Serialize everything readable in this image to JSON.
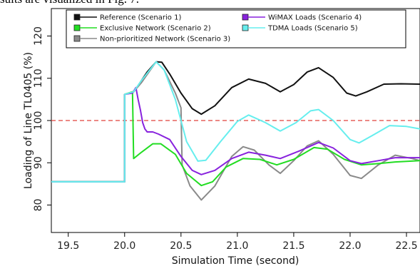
{
  "caption": "sults are visualized in Fig. 7.",
  "chart_data": {
    "type": "line",
    "title": "",
    "xlabel": "Simulation Time (second)",
    "ylabel": "Loading of Line TL0405 (%)",
    "xlim": [
      19.35,
      22.62
    ],
    "ylim": [
      73.5,
      126.5
    ],
    "xticks": [
      19.5,
      20.0,
      20.5,
      21.0,
      21.5,
      22.0,
      22.5
    ],
    "xtick_labels": [
      "19.5",
      "20.0",
      "20.5",
      "21.0",
      "21.5",
      "22.0",
      "22.5"
    ],
    "yticks": [
      80,
      90,
      100,
      110,
      120
    ],
    "ytick_labels": [
      "80",
      "90",
      "100",
      "110",
      "120"
    ],
    "grid": false,
    "legend_position": "top",
    "reference_line": {
      "y": 100,
      "style": "dashed",
      "color": "#e0403a"
    },
    "series": [
      {
        "name": "Reference (Scenario 1)",
        "color": "#111111",
        "points": [
          [
            19.35,
            85.5
          ],
          [
            20.0,
            85.5
          ],
          [
            20.0,
            106.2
          ],
          [
            20.08,
            106.8
          ],
          [
            20.1,
            107.5
          ],
          [
            20.2,
            111.5
          ],
          [
            20.28,
            113.9
          ],
          [
            20.33,
            113.8
          ],
          [
            20.4,
            111.0
          ],
          [
            20.5,
            106.5
          ],
          [
            20.6,
            102.8
          ],
          [
            20.68,
            101.5
          ],
          [
            20.8,
            103.5
          ],
          [
            20.95,
            107.8
          ],
          [
            21.1,
            109.8
          ],
          [
            21.25,
            108.8
          ],
          [
            21.38,
            106.8
          ],
          [
            21.5,
            108.5
          ],
          [
            21.62,
            111.5
          ],
          [
            21.72,
            112.5
          ],
          [
            21.85,
            110.2
          ],
          [
            21.97,
            106.5
          ],
          [
            22.05,
            105.8
          ],
          [
            22.15,
            106.8
          ],
          [
            22.3,
            108.6
          ],
          [
            22.45,
            108.7
          ],
          [
            22.62,
            108.6
          ]
        ]
      },
      {
        "name": "Exclusive Network (Scenario 2)",
        "color": "#22dd22",
        "points": [
          [
            19.35,
            85.5
          ],
          [
            20.0,
            85.5
          ],
          [
            20.0,
            106.2
          ],
          [
            20.07,
            106.8
          ],
          [
            20.08,
            91.0
          ],
          [
            20.15,
            92.5
          ],
          [
            20.25,
            94.5
          ],
          [
            20.32,
            94.5
          ],
          [
            20.45,
            92.0
          ],
          [
            20.55,
            87.5
          ],
          [
            20.68,
            84.6
          ],
          [
            20.78,
            85.5
          ],
          [
            20.9,
            89.0
          ],
          [
            21.05,
            91.0
          ],
          [
            21.2,
            90.8
          ],
          [
            21.35,
            89.5
          ],
          [
            21.5,
            90.8
          ],
          [
            21.68,
            93.6
          ],
          [
            21.8,
            93.2
          ],
          [
            21.95,
            90.8
          ],
          [
            22.1,
            89.5
          ],
          [
            22.25,
            89.8
          ],
          [
            22.4,
            90.2
          ],
          [
            22.62,
            90.5
          ]
        ]
      },
      {
        "name": "Non-prioritized Network (Scenario 3)",
        "color": "#8a8a8a",
        "points": [
          [
            19.35,
            85.5
          ],
          [
            20.0,
            85.5
          ],
          [
            20.0,
            106.2
          ],
          [
            20.08,
            106.8
          ],
          [
            20.15,
            109.0
          ],
          [
            20.28,
            113.9
          ],
          [
            20.35,
            112.0
          ],
          [
            20.45,
            106.5
          ],
          [
            20.5,
            103.0
          ],
          [
            20.51,
            89.5
          ],
          [
            20.58,
            84.5
          ],
          [
            20.68,
            81.2
          ],
          [
            20.8,
            84.5
          ],
          [
            20.95,
            91.5
          ],
          [
            21.05,
            93.8
          ],
          [
            21.15,
            93.0
          ],
          [
            21.28,
            89.5
          ],
          [
            21.38,
            87.5
          ],
          [
            21.5,
            90.5
          ],
          [
            21.62,
            94.0
          ],
          [
            21.72,
            95.2
          ],
          [
            21.85,
            92.0
          ],
          [
            22.0,
            87.0
          ],
          [
            22.1,
            86.3
          ],
          [
            22.25,
            89.5
          ],
          [
            22.4,
            91.8
          ],
          [
            22.55,
            91.0
          ],
          [
            22.62,
            90.5
          ]
        ]
      },
      {
        "name": "WiMAX Loads (Scenario 4)",
        "color": "#8822dd",
        "points": [
          [
            19.35,
            85.5
          ],
          [
            20.0,
            85.5
          ],
          [
            20.0,
            106.2
          ],
          [
            20.07,
            106.5
          ],
          [
            20.1,
            107.8
          ],
          [
            20.12,
            105.0
          ],
          [
            20.14,
            102.5
          ],
          [
            20.16,
            99.5
          ],
          [
            20.18,
            98.0
          ],
          [
            20.2,
            97.3
          ],
          [
            20.25,
            97.3
          ],
          [
            20.3,
            96.8
          ],
          [
            20.4,
            95.5
          ],
          [
            20.5,
            91.5
          ],
          [
            20.6,
            88.2
          ],
          [
            20.68,
            87.2
          ],
          [
            20.8,
            88.2
          ],
          [
            20.95,
            91.0
          ],
          [
            21.1,
            92.5
          ],
          [
            21.25,
            91.8
          ],
          [
            21.38,
            91.0
          ],
          [
            21.55,
            92.8
          ],
          [
            21.72,
            94.8
          ],
          [
            21.85,
            93.5
          ],
          [
            22.0,
            90.5
          ],
          [
            22.1,
            89.8
          ],
          [
            22.25,
            90.5
          ],
          [
            22.4,
            91.2
          ],
          [
            22.62,
            91.2
          ]
        ]
      },
      {
        "name": "TDMA Loads (Scenario 5)",
        "color": "#66eeee",
        "points": [
          [
            19.35,
            85.5
          ],
          [
            20.0,
            85.5
          ],
          [
            20.0,
            106.2
          ],
          [
            20.08,
            106.8
          ],
          [
            20.15,
            109.5
          ],
          [
            20.28,
            113.9
          ],
          [
            20.35,
            112.0
          ],
          [
            20.45,
            105.0
          ],
          [
            20.55,
            95.0
          ],
          [
            20.65,
            90.4
          ],
          [
            20.72,
            90.6
          ],
          [
            20.85,
            95.0
          ],
          [
            21.0,
            99.8
          ],
          [
            21.1,
            101.3
          ],
          [
            21.25,
            99.5
          ],
          [
            21.38,
            97.5
          ],
          [
            21.52,
            99.5
          ],
          [
            21.65,
            102.3
          ],
          [
            21.72,
            102.6
          ],
          [
            21.85,
            100.0
          ],
          [
            22.0,
            95.5
          ],
          [
            22.08,
            94.7
          ],
          [
            22.2,
            96.5
          ],
          [
            22.35,
            98.8
          ],
          [
            22.5,
            98.6
          ],
          [
            22.62,
            98.0
          ]
        ]
      }
    ]
  }
}
